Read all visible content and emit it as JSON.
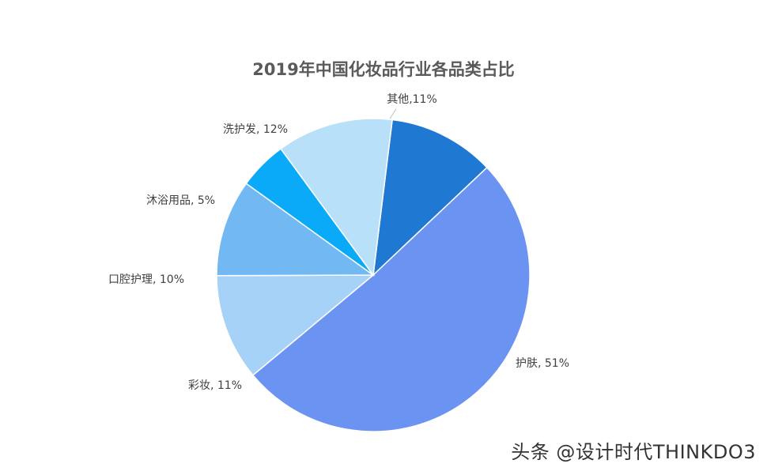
{
  "chart_data": {
    "type": "pie",
    "title": "2019年中国化妆品行业各品类占比",
    "slices": [
      {
        "name": "其他",
        "value": 11,
        "label": "其他,11%",
        "color": "#1f78d1"
      },
      {
        "name": "护肤",
        "value": 51,
        "label": "护肤, 51%",
        "color": "#6b93f2"
      },
      {
        "name": "彩妆",
        "value": 11,
        "label": "彩妆, 11%",
        "color": "#a7d2f7"
      },
      {
        "name": "口腔护理",
        "value": 10,
        "label": "口腔护理, 10%",
        "color": "#72b8f3"
      },
      {
        "name": "沐浴用品",
        "value": 5,
        "label": "沐浴用品, 5%",
        "color": "#0aaaf8"
      },
      {
        "name": "洗护发",
        "value": 12,
        "label": "洗护发, 12%",
        "color": "#b8e0f8"
      }
    ],
    "start": "top, clockwise",
    "legend": "none"
  },
  "watermark": "头条 @设计时代THINKDO3"
}
